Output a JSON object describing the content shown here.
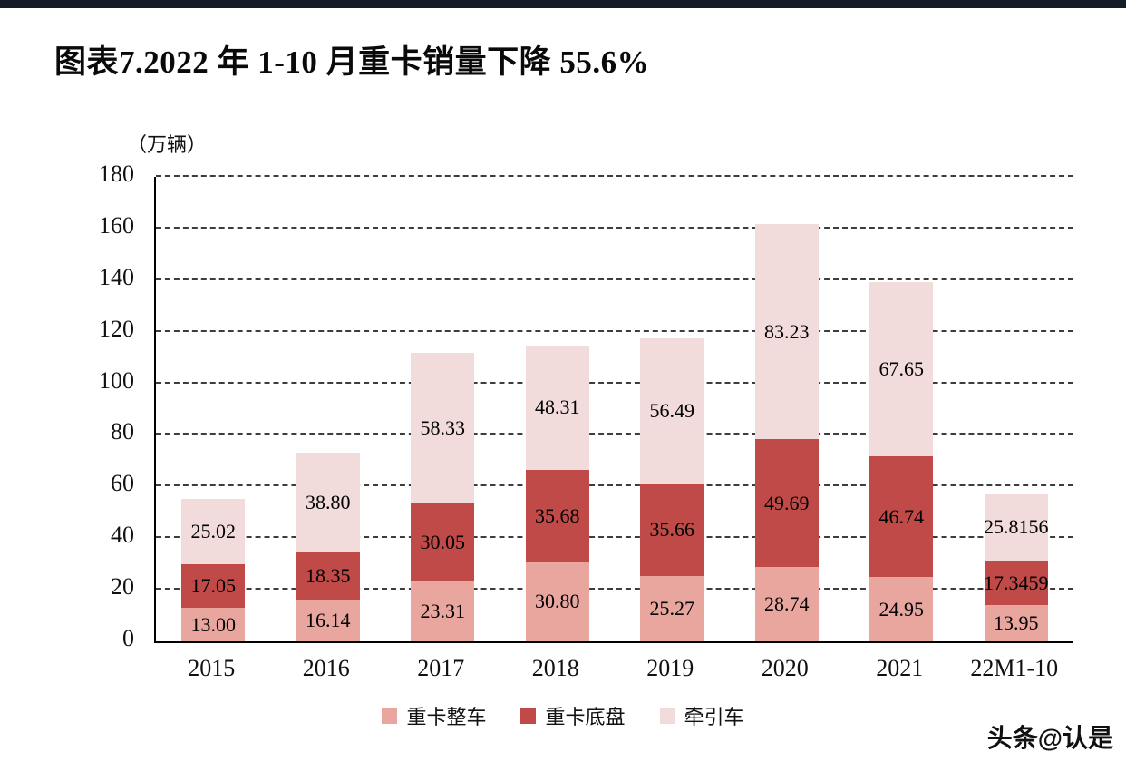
{
  "page": {
    "title": "图表7.2022 年 1-10 月重卡销量下降 55.6%",
    "watermark": "头条@认是"
  },
  "chart_data": {
    "type": "bar",
    "stacked": true,
    "title": "图表7.2022 年 1-10 月重卡销量下降 55.6%",
    "unit_label": "（万辆）",
    "categories": [
      "2015",
      "2016",
      "2017",
      "2018",
      "2019",
      "2020",
      "2021",
      "22M1-10"
    ],
    "series": [
      {
        "name": "重卡整车",
        "color": "#E8A69F",
        "values": [
          13.0,
          16.14,
          23.31,
          30.8,
          25.27,
          28.74,
          24.95,
          13.95
        ],
        "labels": [
          "13.00",
          "16.14",
          "23.31",
          "30.80",
          "25.27",
          "28.74",
          "24.95",
          "13.95"
        ]
      },
      {
        "name": "重卡底盘",
        "color": "#BF4A47",
        "values": [
          17.05,
          18.35,
          30.05,
          35.68,
          35.66,
          49.69,
          46.74,
          17.3459
        ],
        "labels": [
          "17.05",
          "18.35",
          "30.05",
          "35.68",
          "35.66",
          "49.69",
          "46.74",
          "17.3459"
        ]
      },
      {
        "name": "牵引车",
        "color": "#F2DCDB",
        "values": [
          25.02,
          38.8,
          58.33,
          48.31,
          56.49,
          83.23,
          67.65,
          25.8156
        ],
        "labels": [
          "25.02",
          "38.80",
          "58.33",
          "48.31",
          "56.49",
          "83.23",
          "67.65",
          "25.8156"
        ]
      }
    ],
    "ylim": [
      0,
      180
    ],
    "yticks": [
      0,
      20,
      40,
      60,
      80,
      100,
      120,
      140,
      160,
      180
    ],
    "grid": "dashed-horizontal",
    "legend_position": "bottom"
  }
}
